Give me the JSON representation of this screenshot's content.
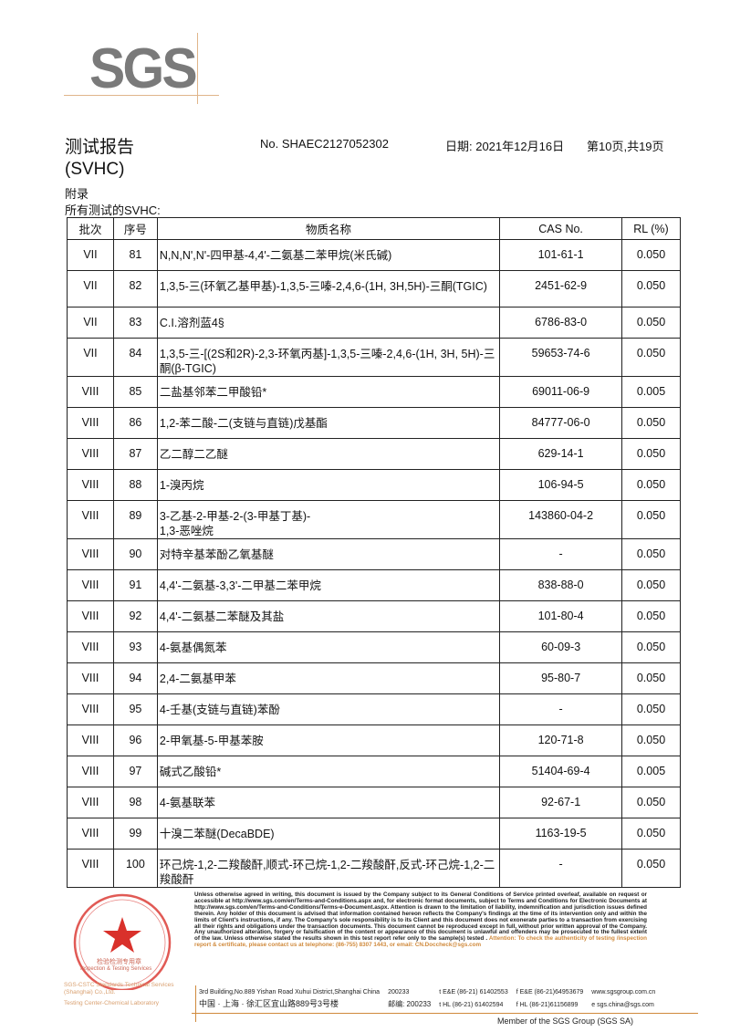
{
  "logo": {
    "text": "SGS"
  },
  "header": {
    "title": "测试报告",
    "report_no": "No. SHAEC2127052302",
    "date": "日期: 2021年12月16日",
    "page": "第10页,共19页"
  },
  "subtitle": "(SVHC)",
  "appendix": "附录",
  "section_label": "所有测试的SVHC:",
  "table": {
    "columns": [
      "批次",
      "序号",
      "物质名称",
      "CAS No.",
      "RL (%)"
    ],
    "rows": [
      [
        "VII",
        "81",
        "N,N,N',N'-四甲基-4,4'-二氨基二苯甲烷(米氏碱)",
        "101-61-1",
        "0.050"
      ],
      [
        "VII",
        "82",
        "1,3,5-三(环氧乙基甲基)-1,3,5-三嗪-2,4,6-(1H, 3H,5H)-三酮(TGIC)",
        "2451-62-9",
        "0.050"
      ],
      [
        "VII",
        "83",
        "C.I.溶剂蓝4§",
        "6786-83-0",
        "0.050"
      ],
      [
        "VII",
        "84",
        "1,3,5-三-[(2S和2R)-2,3-环氧丙基]-1,3,5-三嗪-2,4,6-(1H, 3H, 5H)-三酮(β-TGIC)",
        "59653-74-6",
        "0.050"
      ],
      [
        "VIII",
        "85",
        "二盐基邻苯二甲酸铅*",
        "69011-06-9",
        "0.005"
      ],
      [
        "VIII",
        "86",
        "1,2-苯二酸-二(支链与直链)戊基酯",
        "84777-06-0",
        "0.050"
      ],
      [
        "VIII",
        "87",
        "乙二醇二乙醚",
        "629-14-1",
        "0.050"
      ],
      [
        "VIII",
        "88",
        "1-溴丙烷",
        "106-94-5",
        "0.050"
      ],
      [
        "VIII",
        "89",
        "3-乙基-2-甲基-2-(3-甲基丁基)-\n1,3-恶唑烷",
        "143860-04-2",
        "0.050"
      ],
      [
        "VIII",
        "90",
        "对特辛基苯酚乙氧基醚",
        "-",
        "0.050"
      ],
      [
        "VIII",
        "91",
        "4,4'-二氨基-3,3'-二甲基二苯甲烷",
        "838-88-0",
        "0.050"
      ],
      [
        "VIII",
        "92",
        "4,4'-二氨基二苯醚及其盐",
        "101-80-4",
        "0.050"
      ],
      [
        "VIII",
        "93",
        "4-氨基偶氮苯",
        "60-09-3",
        "0.050"
      ],
      [
        "VIII",
        "94",
        "2,4-二氨基甲苯",
        "95-80-7",
        "0.050"
      ],
      [
        "VIII",
        "95",
        "4-壬基(支链与直链)苯酚",
        "-",
        "0.050"
      ],
      [
        "VIII",
        "96",
        "2-甲氧基-5-甲基苯胺",
        "120-71-8",
        "0.050"
      ],
      [
        "VIII",
        "97",
        "碱式乙酸铅*",
        "51404-69-4",
        "0.005"
      ],
      [
        "VIII",
        "98",
        "4-氨基联苯",
        "92-67-1",
        "0.050"
      ],
      [
        "VIII",
        "99",
        "十溴二苯醚(DecaBDE)",
        "1163-19-5",
        "0.050"
      ],
      [
        "VIII",
        "100",
        "环己烷-1,2-二羧酸酐,顺式-环己烷-1,2-二羧酸酐,反式-环己烷-1,2-二羧酸酐",
        "-",
        "0.050"
      ]
    ]
  },
  "footer": {
    "disclaimer": "Unless otherwise agreed in writing, this document is issued by the Company subject to its General Conditions of Service printed overleaf, available on request or accessible at http://www.sgs.com/en/Terms-and-Conditions.aspx and, for electronic format documents, subject to Terms and Conditions for Electronic Documents at http://www.sgs.com/en/Terms-and-Conditions/Terms-e-Document.aspx. Attention is drawn to the limitation of liability, indemnification and jurisdiction issues defined therein. Any holder of this document is advised that information contained hereon reflects the Company's findings at the time of its intervention only and within the limits of Client's instructions, if any. The Company's sole responsibility is to its Client and this document does not exonerate parties to a transaction from exercising all their rights and obligations under the transaction documents. This document cannot be reproduced except in full, without prior written approval of the Company. Any unauthorized alteration, forgery or falsification of the content or appearance of this document is unlawful and offenders may be prosecuted to the fullest extent of the law. Unless otherwise stated the results shown in this test report refer only to the sample(s) tested .",
    "attention": "Attention: To check the authenticity of testing /inspection report & certificate, please contact us at telephone: (86-755) 8307 1443, or email: CN.Doccheck@sgs.com",
    "address_en": "3rd Building,No.889 Yishan Road Xuhui District,Shanghai China",
    "postcode_en": "200233",
    "address_cn": "中国 · 上海 · 徐汇区宜山路889号3号楼",
    "postcode_cn": "邮编: 200233",
    "tel1": "t E&E (86-21) 61402553",
    "fax1": "f E&E (86-21)64953679",
    "web": "www.sgsgroup.com.cn",
    "tel2": "t HL (86-21) 61402594",
    "fax2": "f HL (86-21)61156899",
    "email": "e  sgs.china@sgs.com",
    "member": "Member of the SGS Group (SGS SA)",
    "stamp_caption1": "SGS-CSTC Standards Technical Services (Shanghai) Co.,Ltd.",
    "stamp_caption2": "Testing Center-Chemical Laboratory",
    "stamp_text_cn": "检验检测专用章",
    "stamp_text_en": "Inspection & Testing Services"
  },
  "colors": {
    "logo_gray": "#7a7a7a",
    "accent_orange": "#d08a3c",
    "stamp_red": "#d9312b"
  }
}
